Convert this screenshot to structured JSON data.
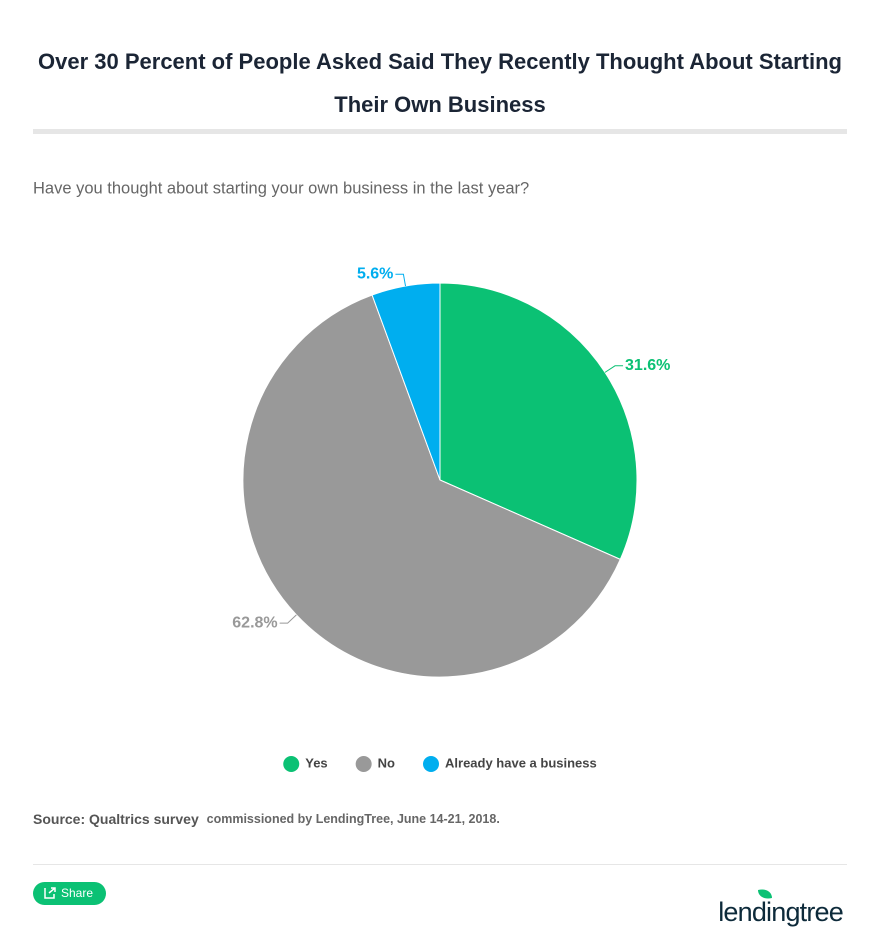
{
  "chart_data": {
    "type": "pie",
    "title": "Over 30 Percent of People Asked Said They Recently Thought About Starting Their Own Business",
    "subtitle": "Have you thought about starting your own business in the last year?",
    "categories": [
      "Yes",
      "No",
      "Already have a business"
    ],
    "values": [
      31.6,
      62.8,
      5.6
    ],
    "value_labels": [
      "31.6%",
      "62.8%",
      "5.6%"
    ],
    "colors": [
      "#0bc174",
      "#999999",
      "#00aeef"
    ],
    "legend": "bottom",
    "source_label": "Source: Qualtrics survey",
    "source_note": "commissioned by LendingTree, June 14-21, 2018."
  },
  "share_button": "Share",
  "logo": "lendingtree"
}
